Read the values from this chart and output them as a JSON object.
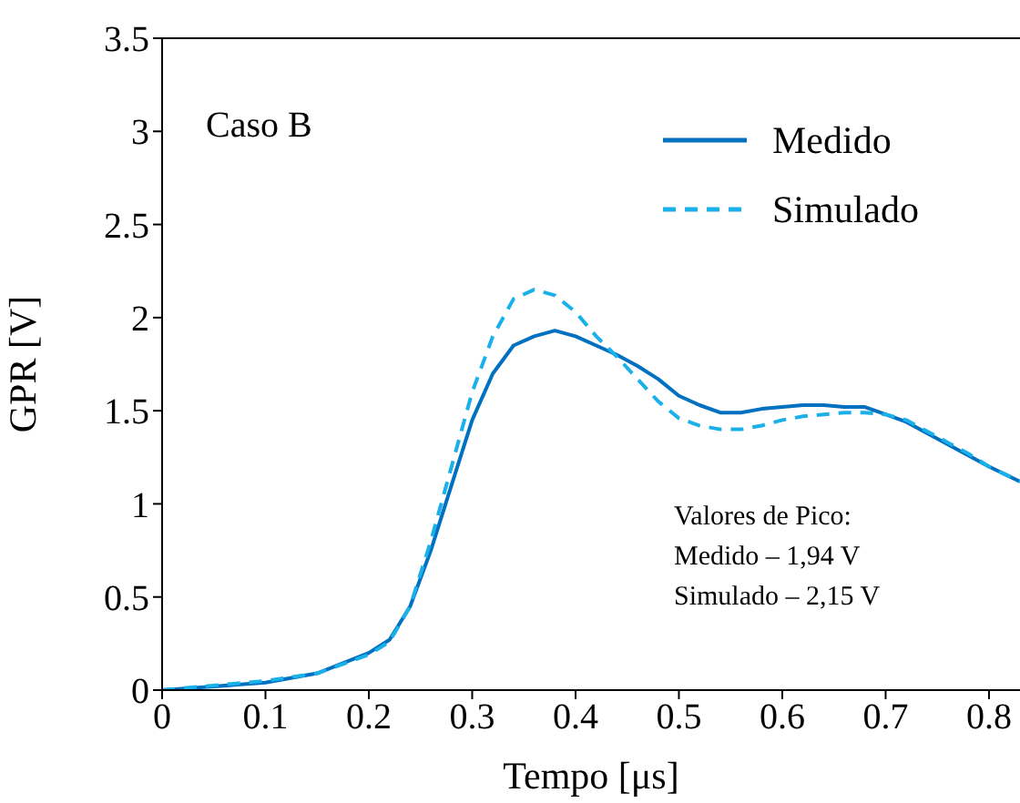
{
  "chart_data": {
    "type": "line",
    "xlabel": "Tempo [μs]",
    "ylabel": "GPR [V]",
    "xlim": [
      0,
      0.83
    ],
    "xticks": [
      0,
      0.1,
      0.2,
      0.3,
      0.4,
      0.5,
      0.6,
      0.7,
      0.8
    ],
    "ylim": [
      0,
      3.5
    ],
    "yticks": [
      0,
      0.5,
      1,
      1.5,
      2,
      2.5,
      3,
      3.5
    ],
    "legend": "top right",
    "annotations": [
      "Caso B",
      "Valores de Pico:",
      "Medido – 1,94 V",
      "Simulado – 2,15 V"
    ],
    "series": [
      {
        "name": "Medido",
        "color": "#0070c0",
        "line_style": "solid",
        "x": [
          0,
          0.05,
          0.1,
          0.15,
          0.2,
          0.22,
          0.24,
          0.26,
          0.28,
          0.3,
          0.32,
          0.34,
          0.36,
          0.38,
          0.4,
          0.42,
          0.44,
          0.46,
          0.48,
          0.5,
          0.52,
          0.54,
          0.56,
          0.58,
          0.6,
          0.62,
          0.64,
          0.66,
          0.68,
          0.7,
          0.72,
          0.74,
          0.76,
          0.78,
          0.8,
          0.83
        ],
        "values": [
          0,
          0.02,
          0.04,
          0.09,
          0.2,
          0.27,
          0.45,
          0.75,
          1.1,
          1.45,
          1.7,
          1.85,
          1.9,
          1.93,
          1.9,
          1.85,
          1.8,
          1.74,
          1.67,
          1.58,
          1.53,
          1.49,
          1.49,
          1.51,
          1.52,
          1.53,
          1.53,
          1.52,
          1.52,
          1.48,
          1.44,
          1.38,
          1.32,
          1.26,
          1.2,
          1.12
        ]
      },
      {
        "name": "Simulado",
        "color": "#1ab0ea",
        "line_style": "dashed",
        "x": [
          0,
          0.1,
          0.15,
          0.2,
          0.22,
          0.24,
          0.26,
          0.28,
          0.3,
          0.32,
          0.34,
          0.36,
          0.38,
          0.4,
          0.42,
          0.44,
          0.46,
          0.48,
          0.5,
          0.52,
          0.54,
          0.56,
          0.58,
          0.6,
          0.62,
          0.64,
          0.66,
          0.68,
          0.7,
          0.72,
          0.74,
          0.76,
          0.78,
          0.8,
          0.83
        ],
        "values": [
          0,
          0.05,
          0.09,
          0.19,
          0.26,
          0.45,
          0.8,
          1.2,
          1.6,
          1.9,
          2.1,
          2.15,
          2.12,
          2.03,
          1.9,
          1.79,
          1.67,
          1.55,
          1.46,
          1.42,
          1.4,
          1.4,
          1.42,
          1.45,
          1.47,
          1.48,
          1.49,
          1.49,
          1.48,
          1.45,
          1.39,
          1.33,
          1.27,
          1.2,
          1.12
        ]
      }
    ]
  }
}
